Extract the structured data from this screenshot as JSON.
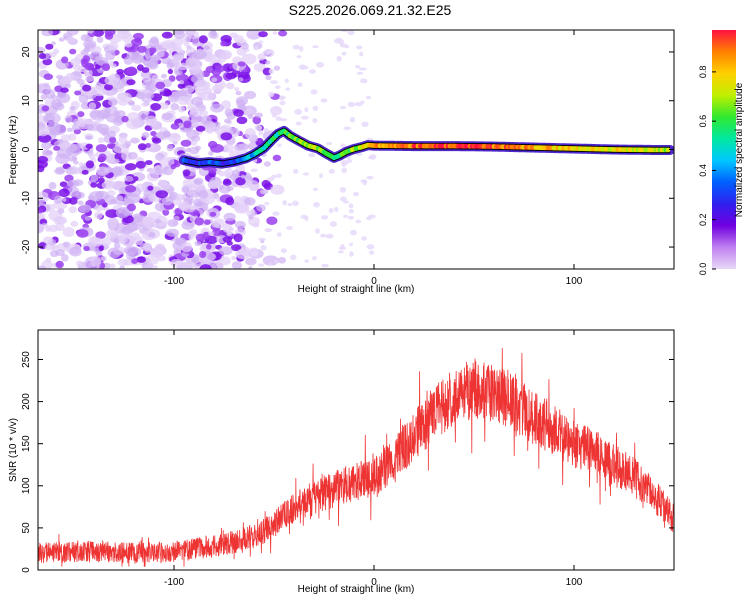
{
  "figure_title": "S225.2026.069.21.32.E25",
  "chart_data": [
    {
      "type": "heatmap",
      "title": "S225.2026.069.21.32.E25",
      "xlabel": "Height of straight line (km)",
      "ylabel": "Frequency (Hz)",
      "xlim": [
        -168,
        150
      ],
      "ylim": [
        -24.5,
        24.5
      ],
      "xticks": [
        -100,
        0,
        100
      ],
      "yticks": [
        -20,
        -10,
        0,
        10,
        20
      ],
      "colorbar": {
        "label": "Normalized spectral amplitude",
        "range": [
          0.0,
          0.97
        ],
        "ticks": [
          0.0,
          0.2,
          0.4,
          0.6,
          0.8
        ],
        "colors": [
          "#e8d8f8",
          "#c080f0",
          "#7000e0",
          "#3020f0",
          "#0060ff",
          "#00c8ff",
          "#00e8a0",
          "#30e830",
          "#c0f000",
          "#ffd000",
          "#ff8000",
          "#ff1040"
        ]
      },
      "ridge": {
        "x": [
          -95,
          -88,
          -82,
          -76,
          -70,
          -64,
          -60,
          -55,
          -52,
          -48,
          -45,
          -42,
          -38,
          -33,
          -28,
          -24,
          -20,
          -17,
          -14,
          -10,
          -6,
          -3,
          0,
          20,
          40,
          60,
          80,
          100,
          120,
          140,
          148
        ],
        "y": [
          -2.2,
          -2.8,
          -2.6,
          -2.9,
          -2.5,
          -1.8,
          -1.0,
          0.3,
          1.6,
          3.2,
          3.8,
          2.8,
          1.9,
          0.8,
          0.2,
          -0.8,
          -1.7,
          -1.2,
          -0.5,
          0.1,
          0.5,
          0.9,
          0.8,
          0.7,
          0.7,
          0.6,
          0.4,
          0.2,
          0.0,
          -0.1,
          -0.1
        ],
        "amplitude": [
          0.3,
          0.3,
          0.35,
          0.3,
          0.35,
          0.4,
          0.45,
          0.5,
          0.55,
          0.55,
          0.6,
          0.62,
          0.65,
          0.7,
          0.72,
          0.6,
          0.55,
          0.6,
          0.65,
          0.7,
          0.75,
          0.8,
          0.85,
          0.92,
          0.95,
          0.92,
          0.85,
          0.8,
          0.78,
          0.75,
          0.7
        ]
      },
      "noise_region_x": [
        -168,
        -45
      ]
    },
    {
      "type": "line",
      "title": "",
      "xlabel": "Height of straight line (km)",
      "ylabel": "SNR (10 * v/v)",
      "xlim": [
        -168,
        150
      ],
      "ylim": [
        0,
        285
      ],
      "xticks": [
        -100,
        0,
        100
      ],
      "yticks": [
        0,
        50,
        100,
        150,
        200,
        250
      ],
      "series": [
        {
          "name": "SNR",
          "color": "#ee3333",
          "envelope_x": [
            -168,
            -140,
            -120,
            -100,
            -90,
            -80,
            -70,
            -60,
            -50,
            -40,
            -30,
            -20,
            -10,
            0,
            10,
            20,
            30,
            40,
            50,
            60,
            70,
            80,
            90,
            100,
            110,
            120,
            130,
            140,
            150
          ],
          "envelope_mean": [
            20,
            22,
            20,
            22,
            25,
            28,
            33,
            40,
            55,
            75,
            85,
            95,
            105,
            110,
            130,
            160,
            185,
            205,
            215,
            210,
            200,
            180,
            165,
            150,
            140,
            125,
            110,
            90,
            60
          ],
          "noise_amplitude": 25
        }
      ]
    }
  ]
}
